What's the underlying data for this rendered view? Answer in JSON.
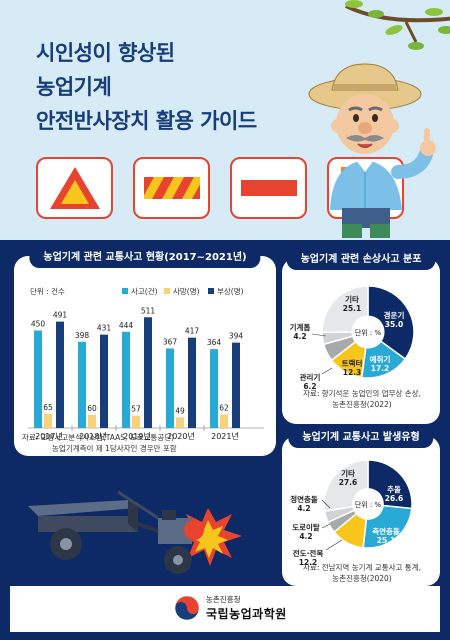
{
  "hero": {
    "title_lines": [
      "시인성이 향상된",
      "농업기계",
      "안전반사장치 활용 가이드"
    ],
    "colors": {
      "navy": "#173e7a",
      "sky": "#d7ebf6",
      "accent_red": "#e8432f",
      "yellow": "#f7c51b"
    }
  },
  "accident_panel": {
    "title": "농업기계 관련 교통사고 현황(2017~2021년)",
    "unit_label": "단위 : 건수",
    "legend": [
      "사고(건)",
      "사망(명)",
      "부상(명)"
    ],
    "source_lines": [
      "자료: 교통사고분석시스템(TAAS, 도로교통공단)",
      "농업기계측이 제 1당사자인 경우만 포함"
    ]
  },
  "chart_data": [
    {
      "type": "bar",
      "categories": [
        "2017년",
        "2018년",
        "2019년",
        "2020년",
        "2021년"
      ],
      "series": [
        {
          "name": "사고(건)",
          "color": "#29a9d6",
          "values": [
            450,
            398,
            444,
            367,
            364
          ]
        },
        {
          "name": "사망(명)",
          "color": "#f7d27b",
          "values": [
            65,
            60,
            57,
            49,
            62
          ]
        },
        {
          "name": "부상(명)",
          "color": "#173e7a",
          "values": [
            491,
            431,
            511,
            417,
            394
          ]
        }
      ],
      "legend_position": "top-right",
      "grid": false
    },
    {
      "type": "pie",
      "title": "농업기계 관련 손상사고 분포",
      "center_label": "단위 : %",
      "slices": [
        {
          "label": "경운기",
          "value": 35.0,
          "color": "#0d2a66"
        },
        {
          "label": "예취기",
          "value": 17.2,
          "color": "#29a9d6"
        },
        {
          "label": "트랙터",
          "value": 12.3,
          "color": "#f7c51b"
        },
        {
          "label": "관리기",
          "value": 6.2,
          "color": "#a7a9ac"
        },
        {
          "label": "기계톱",
          "value": 4.2,
          "color": "#d1d3d4"
        },
        {
          "label": "기타",
          "value": 25.1,
          "color": "#e6e7e8"
        }
      ],
      "source_lines": [
        "자료: 향기석운 농업인의 업무상 손상,",
        "농촌진흥청(2022)"
      ]
    },
    {
      "type": "pie",
      "title": "농업기계 교통사고 발생유형",
      "center_label": "단위 : %",
      "slices": [
        {
          "label": "추돌",
          "value": 26.6,
          "color": "#0d2a66"
        },
        {
          "label": "측면충돌",
          "value": 25.1,
          "color": "#29a9d6"
        },
        {
          "label": "전도·전복",
          "value": 12.2,
          "color": "#f7c51b"
        },
        {
          "label": "도로이탈",
          "value": 4.2,
          "color": "#a7a9ac"
        },
        {
          "label": "정면충돌",
          "value": 4.2,
          "color": "#d1d3d4"
        },
        {
          "label": "기타",
          "value": 27.6,
          "color": "#e6e7e8"
        }
      ],
      "source_lines": [
        "자료: 전남지역 농기계 교통사고 통계,",
        "농촌진흥청(2020)"
      ]
    }
  ],
  "footer": {
    "org_small": "농촌진흥청",
    "org_big": "국립농업과학원"
  }
}
